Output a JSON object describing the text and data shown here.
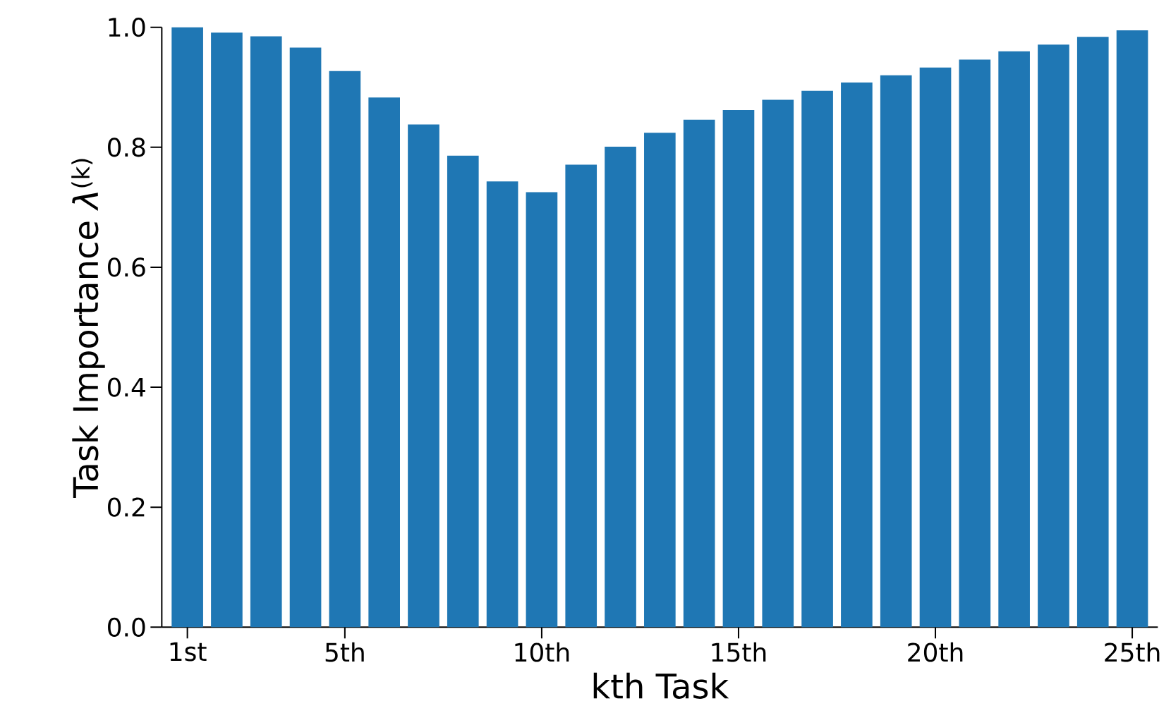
{
  "chart_data": {
    "type": "bar",
    "xlabel": "kth Task",
    "ylabel": "Task Importance *λ*$^{(k)}$",
    "categories": [
      "1st",
      null,
      null,
      null,
      "5th",
      null,
      null,
      null,
      null,
      "10th",
      null,
      null,
      null,
      null,
      "15th",
      null,
      null,
      null,
      null,
      "20th",
      null,
      null,
      null,
      null,
      "25th"
    ],
    "values": [
      1.0,
      0.991,
      0.985,
      0.966,
      0.927,
      0.883,
      0.838,
      0.786,
      0.743,
      0.725,
      0.771,
      0.801,
      0.824,
      0.846,
      0.862,
      0.879,
      0.894,
      0.908,
      0.92,
      0.933,
      0.946,
      0.96,
      0.971,
      0.984,
      0.995
    ],
    "color": "#1f77b4",
    "ylim": [
      0,
      1.0
    ],
    "yticks": [
      {
        "value": 0,
        "label": "0.0"
      },
      {
        "value": 0.2,
        "label": "0.2"
      },
      {
        "value": 0.4,
        "label": "0.4"
      },
      {
        "value": 0.6,
        "label": "0.6"
      },
      {
        "value": 0.8,
        "label": "0.8"
      },
      {
        "value": 1.0,
        "label": "1.0"
      }
    ]
  }
}
